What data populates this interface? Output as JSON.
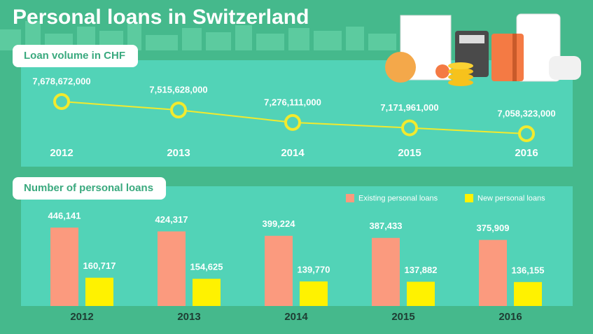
{
  "title": "Personal loans in Switzerland",
  "chart_data": [
    {
      "type": "line",
      "title": "Loan volume in CHF",
      "categories": [
        "2012",
        "2013",
        "2014",
        "2015",
        "2016"
      ],
      "values": [
        7678672000,
        7515628000,
        7276111000,
        7171961000,
        7058323000
      ],
      "value_labels": [
        "7,678,672,000",
        "7,515,628,000",
        "7,276,111,000",
        "7,171,961,000",
        "7,058,323,000"
      ],
      "color": "#f2ea2e"
    },
    {
      "type": "bar",
      "title": "Number of personal loans",
      "categories": [
        "2012",
        "2013",
        "2014",
        "2015",
        "2016"
      ],
      "legend": "top-right",
      "series": [
        {
          "name": "Existing personal loans",
          "color": "#fb9a7e",
          "values": [
            446141,
            424317,
            399224,
            387433,
            375909
          ],
          "value_labels": [
            "446,141",
            "424,317",
            "399,224",
            "387,433",
            "375,909"
          ]
        },
        {
          "name": "New personal loans",
          "color": "#fff200",
          "values": [
            160717,
            154625,
            139770,
            137882,
            136155
          ],
          "value_labels": [
            "160,717",
            "154,625",
            "139,770",
            "137,882",
            "136,155"
          ]
        }
      ]
    }
  ]
}
